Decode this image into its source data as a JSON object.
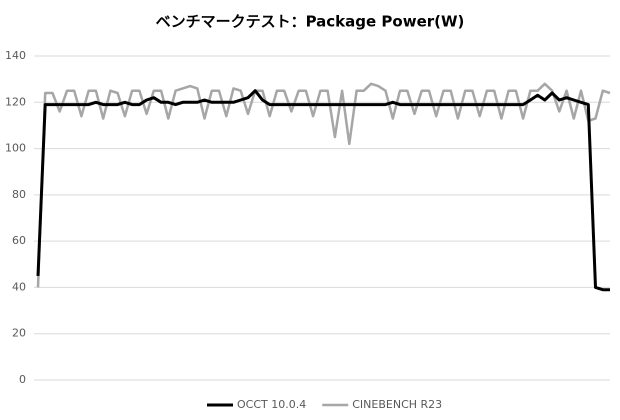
{
  "chart_data": {
    "type": "line",
    "title": "ベンチマークテスト：Package Power(W)",
    "categories": [
      null,
      null,
      null,
      null,
      null,
      null,
      null,
      null,
      null,
      null,
      null,
      null,
      null,
      null,
      null,
      null,
      null,
      null,
      null,
      null,
      null,
      null,
      null,
      null,
      null,
      null,
      null,
      null,
      null,
      null,
      null,
      null,
      null,
      null,
      null,
      null,
      null,
      null,
      null,
      null,
      null,
      null,
      null,
      null,
      null,
      null,
      null,
      null,
      null,
      null,
      null,
      null,
      null,
      null,
      null,
      null,
      null,
      null,
      null,
      null,
      null,
      null,
      null,
      null,
      null,
      null,
      null,
      null,
      null,
      null,
      null,
      null,
      null,
      null,
      null,
      null,
      null,
      null,
      null,
      null
    ],
    "series": [
      {
        "name": "OCCT 10.0.4",
        "color": "#000000",
        "values": [
          45,
          119,
          119,
          119,
          119,
          119,
          119,
          119,
          120,
          119,
          119,
          119,
          120,
          119,
          119,
          121,
          122,
          120,
          120,
          119,
          120,
          120,
          120,
          121,
          120,
          120,
          120,
          120,
          121,
          122,
          125,
          121,
          119,
          119,
          119,
          119,
          119,
          119,
          119,
          119,
          119,
          119,
          119,
          119,
          119,
          119,
          119,
          119,
          119,
          120,
          119,
          119,
          119,
          119,
          119,
          119,
          119,
          119,
          119,
          119,
          119,
          119,
          119,
          119,
          119,
          119,
          119,
          119,
          121,
          123,
          121,
          124,
          121,
          122,
          121,
          120,
          119,
          40,
          39,
          39
        ]
      },
      {
        "name": "CINEBENCH R23",
        "color": "#a6a6a6",
        "values": [
          40,
          124,
          124,
          116,
          125,
          125,
          114,
          125,
          125,
          113,
          125,
          124,
          114,
          125,
          125,
          115,
          125,
          125,
          113,
          125,
          126,
          127,
          126,
          113,
          125,
          125,
          114,
          126,
          125,
          115,
          125,
          125,
          114,
          125,
          125,
          116,
          125,
          125,
          114,
          125,
          125,
          105,
          125,
          102,
          125,
          125,
          128,
          127,
          125,
          113,
          125,
          125,
          115,
          125,
          125,
          114,
          125,
          125,
          113,
          125,
          125,
          114,
          125,
          125,
          113,
          125,
          125,
          113,
          125,
          125,
          128,
          125,
          116,
          125,
          113,
          125,
          112,
          113,
          125,
          124
        ]
      }
    ],
    "ylim": [
      0,
      140
    ],
    "yticks": [
      0,
      20,
      40,
      60,
      80,
      100,
      120,
      140
    ],
    "grid": true,
    "legend": "bottom"
  }
}
